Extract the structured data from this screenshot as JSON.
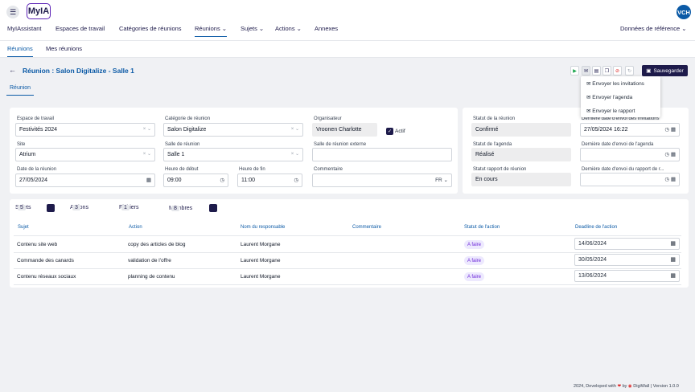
{
  "app": {
    "logo": "MyIA",
    "avatar": "VCH",
    "menu_icon": "hamburger-icon"
  },
  "menu": {
    "items": [
      "MyIAssistant",
      "Espaces de travail",
      "Catégories de réunions",
      "Réunions",
      "Sujets",
      "Actions",
      "Annexes"
    ],
    "right": "Données de référence",
    "chevron": "⌄"
  },
  "subnav": [
    "Réunions",
    "Mes réunions"
  ],
  "page": {
    "title": "Réunion : Salon Digitalize - Salle 1",
    "save": "Sauvegarder",
    "tab": "Réunion"
  },
  "dropdown": [
    "Envoyer les invitations",
    "Envoyer l'agenda",
    "Envoyer le rapport"
  ],
  "form": {
    "espace_label": "Espace de travail",
    "espace": "Festivités 2024",
    "categorie_label": "Catégorie de réunion",
    "categorie": "Salon Digitalize",
    "organisateur_label": "Organisateur",
    "organisateur": "Vroonen Charlotte",
    "actif": "Actif",
    "site_label": "Site",
    "site": "Atrium",
    "salle_label": "Salle de réunion",
    "salle": "Salle 1",
    "salle_ext_label": "Salle de réunion externe",
    "salle_ext": "",
    "date_label": "Date de la réunion",
    "date": "27/05/2024",
    "debut_label": "Heure de début",
    "debut": "09:00",
    "fin_label": "Heure de fin",
    "fin": "11:00",
    "commentaire_label": "Commentaire",
    "lang": "FR"
  },
  "status": {
    "statut_label": "Statut de la réunion",
    "statut": "Confirmé",
    "envoi_inv_label": "Dernière date d'envoi des invitations",
    "envoi_inv": "27/05/2024 16:22",
    "agenda_label": "Statut de l'agenda",
    "agenda": "Réalisé",
    "envoi_agenda_label": "Dernière date d'envoi de l'agenda",
    "envoi_agenda": "",
    "rapport_label": "Statut rapport de réunion",
    "rapport": "En cours",
    "envoi_rapport_label": "Dernière date d'envoi du rapport de r...",
    "envoi_rapport": ""
  },
  "tabs": [
    {
      "label": "Sujets",
      "count": "5"
    },
    {
      "label": "Actions",
      "count": "3"
    },
    {
      "label": "Fichiers",
      "count": "1"
    },
    {
      "label": "Membres",
      "count": "8"
    }
  ],
  "table": {
    "headers": [
      "Sujet",
      "Action",
      "Nom du responsable",
      "Commentaire",
      "Statut de l'action",
      "Deadline de l'action"
    ],
    "rows": [
      {
        "sujet": "Contenu site web",
        "action": "copy des articles de blog",
        "resp": "Laurent Morgane",
        "comment": "",
        "statut": "A faire",
        "deadline": "14/06/2024"
      },
      {
        "sujet": "Commande des canards",
        "action": "validation de l'offre",
        "resp": "Laurent Morgane",
        "comment": "",
        "statut": "A faire",
        "deadline": "30/05/2024"
      },
      {
        "sujet": "Contenu réseaux sociaux",
        "action": "planning de contenu",
        "resp": "Laurent Morgane",
        "comment": "",
        "statut": "A faire",
        "deadline": "13/06/2024"
      }
    ]
  },
  "footer": {
    "pre": "2024, Developed with",
    "mid": "by",
    "post": "DigiWall | Version 1.0.0"
  },
  "colors": {
    "brand": "#1e1b4b",
    "accent": "#0b5aa6",
    "badge": "#ede9fe"
  }
}
